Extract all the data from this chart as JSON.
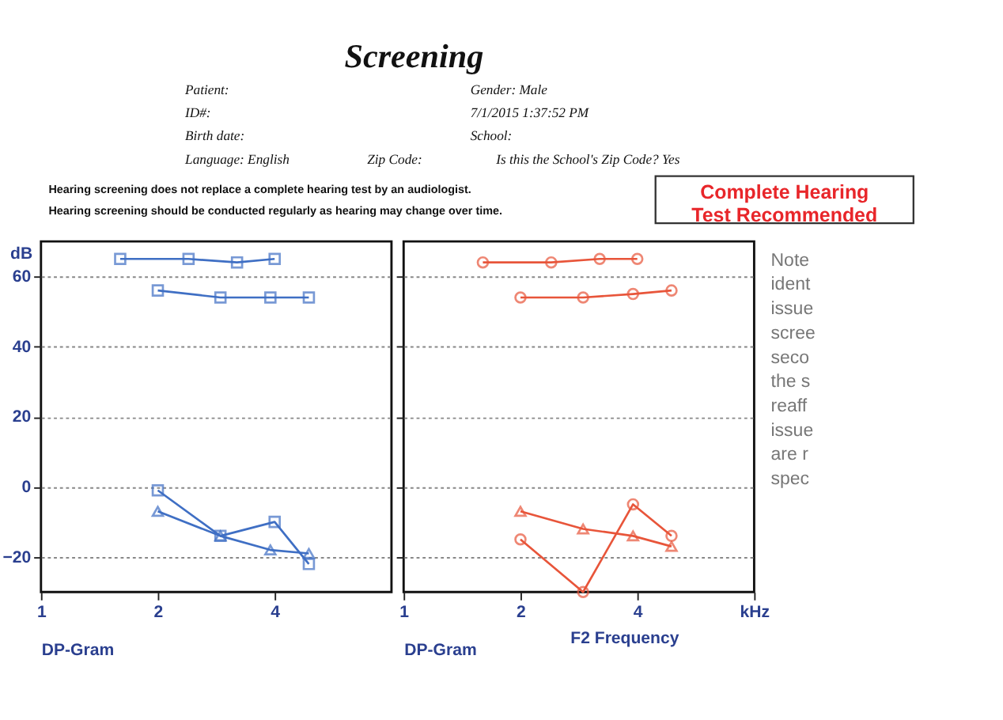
{
  "chart_data": [
    {
      "type": "line",
      "title": "Screening",
      "xlabel": "DP-Gram",
      "ylabel": "dB",
      "log": "x",
      "xlim": [
        1,
        8
      ],
      "xticks": [
        1,
        2,
        4
      ],
      "ylim": [
        -30,
        70
      ],
      "yticks": [
        -20,
        0,
        20,
        40,
        60
      ],
      "grid": "y",
      "line_style": "solid",
      "annotations": [
        "Patient:",
        "ID#:",
        "Birth date:",
        "Language: English",
        "Zip Code:",
        "Gender: Male",
        "7/1/2015 1:37:52 PM",
        "School:",
        "Is this the School's Zip Code? Yes",
        "Hearing screening does not replace a complete hearing test by an audiologist.",
        "Hearing screening should be conducted regularly as hearing may change over time.",
        "Complete Hearing Test Recommended",
        "Note ident issue scree seco the s reaff issue are r spec"
      ],
      "series": [
        {
          "color": "#3f6fc4",
          "marker": "square",
          "x": [
            1.6,
            2.4,
            3.2,
            4
          ],
          "values": [
            65,
            65,
            64,
            65
          ]
        },
        {
          "color": "#3f6fc4",
          "marker": "square",
          "x": [
            2,
            2.9,
            3.9,
            4.9
          ],
          "values": [
            56,
            54,
            54,
            54
          ]
        },
        {
          "color": "#3f6fc4",
          "marker": "square",
          "x": [
            2,
            2.9,
            4,
            4.9
          ],
          "values": [
            -1,
            -14,
            -10,
            -22
          ]
        },
        {
          "color": "#3f6fc4",
          "marker": "triangle",
          "x": [
            2,
            2.9,
            3.9,
            4.9
          ],
          "values": [
            -7,
            -14,
            -18,
            -19
          ]
        }
      ]
    },
    {
      "type": "line",
      "xlabel": "DP-Gram",
      "log": "x",
      "xlim": [
        1,
        8
      ],
      "xticks": [
        1,
        2,
        4,
        {
          "value": 8,
          "label": "kHz"
        }
      ],
      "ylim": [
        -30,
        70
      ],
      "yticks": [
        -20,
        0,
        20,
        40,
        60
      ],
      "grid": "y",
      "tick_labels": "x",
      "line_style": "solid",
      "annotations": [
        "F2 Frequency"
      ],
      "series": [
        {
          "color": "#e8553a",
          "marker": "circle",
          "x": [
            1.6,
            2.4,
            3.2,
            4
          ],
          "values": [
            64,
            64,
            65,
            65
          ]
        },
        {
          "color": "#e8553a",
          "marker": "circle",
          "x": [
            2,
            2.9,
            3.9,
            4.9
          ],
          "values": [
            54,
            54,
            55,
            56
          ]
        },
        {
          "color": "#e8553a",
          "marker": "circle",
          "x": [
            2,
            2.9,
            3.9,
            4.9
          ],
          "values": [
            -15,
            -30,
            -5,
            -14
          ]
        },
        {
          "color": "#e8553a",
          "marker": "triangle",
          "x": [
            2,
            2.9,
            3.9,
            4.9
          ],
          "values": [
            -7,
            -12,
            -14,
            -17
          ]
        }
      ]
    }
  ]
}
